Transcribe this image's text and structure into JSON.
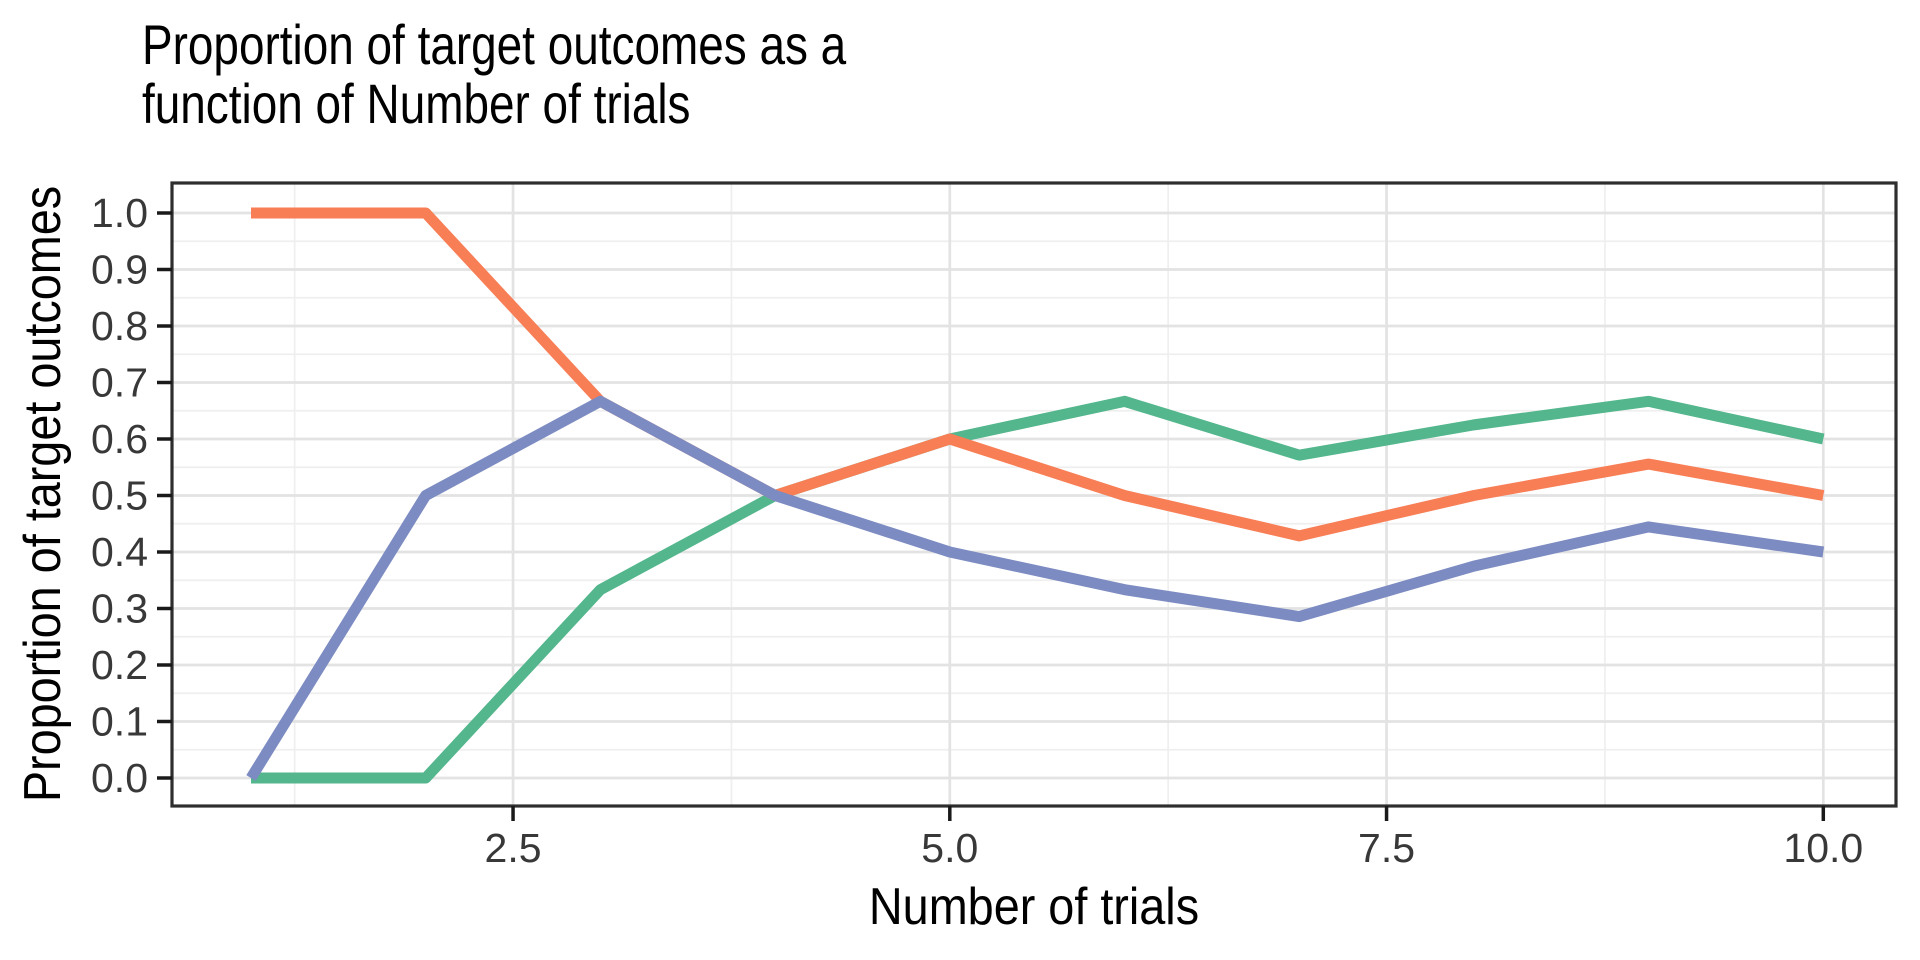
{
  "chart_data": {
    "type": "line",
    "title": "Proportion of target outcomes as a function of Number of trials",
    "title_lines": [
      "Proportion of target outcomes as a",
      "function of Number of trials"
    ],
    "xlabel": "Number of trials",
    "ylabel": "Proportion of target outcomes",
    "x": [
      1,
      2,
      3,
      4,
      5,
      6,
      7,
      8,
      9,
      10
    ],
    "series": [
      {
        "name": "green",
        "color": "#53B68C",
        "values": [
          0.0,
          0.0,
          0.3333,
          0.5,
          0.6,
          0.6667,
          0.5714,
          0.625,
          0.6667,
          0.6
        ]
      },
      {
        "name": "orange",
        "color": "#F87E56",
        "values": [
          1.0,
          1.0,
          0.6667,
          0.5,
          0.6,
          0.5,
          0.4286,
          0.5,
          0.5556,
          0.5
        ]
      },
      {
        "name": "blue",
        "color": "#7C8BC1",
        "values": [
          0.0,
          0.5,
          0.6667,
          0.5,
          0.4,
          0.3333,
          0.2857,
          0.375,
          0.4444,
          0.4
        ]
      }
    ],
    "xlim": [
      1,
      10
    ],
    "ylim": [
      0.0,
      1.0
    ],
    "x_ticks": {
      "values": [
        2.5,
        5.0,
        7.5,
        10.0
      ],
      "labels": [
        "2.5",
        "5.0",
        "7.5",
        "10.0"
      ]
    },
    "y_ticks": {
      "values": [
        0.0,
        0.1,
        0.2,
        0.3,
        0.4,
        0.5,
        0.6,
        0.7,
        0.8,
        0.9,
        1.0
      ],
      "labels": [
        "0.0",
        "0.1",
        "0.2",
        "0.3",
        "0.4",
        "0.5",
        "0.6",
        "0.7",
        "0.8",
        "0.9",
        "1.0"
      ]
    },
    "x_minor_gridlines": [
      1.25,
      3.75,
      6.25,
      8.75
    ],
    "y_minor_gridlines": [
      0.05,
      0.15,
      0.25,
      0.35,
      0.45,
      0.55,
      0.65,
      0.75,
      0.85,
      0.95
    ],
    "grid": true,
    "legend": "none"
  },
  "style": {
    "background": "#FFFFFF",
    "panel_background": "#FFFFFF",
    "major_grid_color": "#E3E3E3",
    "minor_grid_color": "#EFEFEF",
    "panel_border_color": "#2E2E2E",
    "tick_color": "#1A1A1A",
    "axis_text_color": "#383838",
    "title_color": "#000000"
  }
}
